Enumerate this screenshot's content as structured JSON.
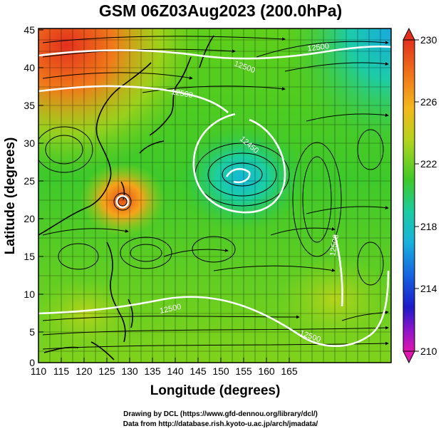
{
  "title": "GSM 06Z03Aug2023 (200.0hPa)",
  "x_axis": {
    "label": "Longitude (degrees)",
    "ticks": [
      "110",
      "115",
      "120",
      "125",
      "130",
      "135",
      "140",
      "145",
      "150",
      "155",
      "160",
      "165"
    ]
  },
  "y_axis": {
    "label": "Latitude (degrees)",
    "ticks": [
      "0",
      "5",
      "10",
      "15",
      "20",
      "25",
      "30",
      "35",
      "40",
      "45"
    ]
  },
  "colorbar": {
    "ticks": [
      "230",
      "226",
      "222",
      "218",
      "214",
      "210"
    ]
  },
  "contour_labels": [
    "12500",
    "12500",
    "12500",
    "12450",
    "12500",
    "12500",
    "12500"
  ],
  "credits": {
    "line1": "Drawing by DCL (https://www.gfd-dennou.org/library/dcl/)",
    "line2": "Data from http://database.rish.kyoto-u.ac.jp/arch/jmadata/"
  }
}
